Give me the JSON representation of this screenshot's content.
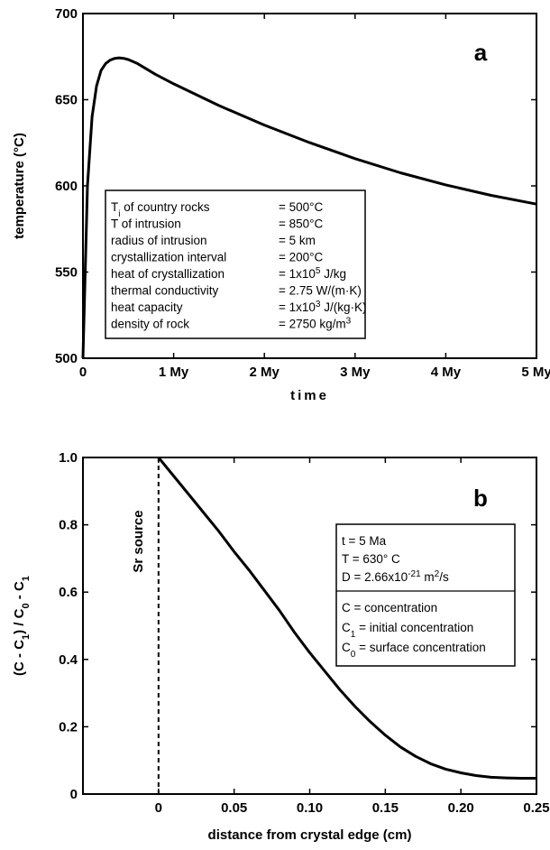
{
  "chart_data": [
    {
      "type": "line",
      "panel_label": "a",
      "xlabel": "time",
      "ylabel": "temperature (°C)",
      "xlim": [
        0,
        5
      ],
      "ylim": [
        500,
        700
      ],
      "x_ticks": [
        0,
        1,
        2,
        3,
        4,
        5
      ],
      "x_tick_labels": [
        "0",
        "1 My",
        "2 My",
        "3 My",
        "4 My",
        "5 My"
      ],
      "y_ticks": [
        500,
        550,
        600,
        650,
        700
      ],
      "y_tick_labels": [
        "500",
        "550",
        "600",
        "650",
        "700"
      ],
      "grid": false,
      "series": [
        {
          "x": [
            0,
            0.05,
            0.1,
            0.15,
            0.2,
            0.25,
            0.3,
            0.35,
            0.4,
            0.45,
            0.5,
            0.6,
            0.8,
            1.0,
            1.5,
            2.0,
            2.5,
            3.0,
            3.5,
            4.0,
            4.5,
            5.0
          ],
          "y": [
            500,
            600,
            640,
            658,
            667,
            671,
            673,
            674,
            674.3,
            674,
            673.3,
            671,
            664.7,
            659.2,
            646.6,
            635.3,
            625.1,
            615.8,
            607.6,
            600.6,
            594.5,
            589.4
          ]
        }
      ],
      "info_box": {
        "rows": [
          {
            "label": "T",
            "sub": "i",
            "label_rest": " of country rocks",
            "value": "= 500°C"
          },
          {
            "label": "T of intrusion",
            "value": "= 850°C"
          },
          {
            "label": "radius of intrusion",
            "value": "= 5 km"
          },
          {
            "label": "crystallization interval",
            "value": "= 200°C"
          },
          {
            "label": "heat of crystallization",
            "value": "= 1x10",
            "sup": "5",
            "value_rest": " J/kg"
          },
          {
            "label": "thermal conductivity",
            "value": "= 2.75 W/(m·K)"
          },
          {
            "label": "heat capacity",
            "value": "= 1x10",
            "sup": "3",
            "value_rest": " J/(kg·K)"
          },
          {
            "label": "density of rock",
            "value": "= 2750 kg/m",
            "sup": "3"
          }
        ]
      }
    },
    {
      "type": "line",
      "panel_label": "b",
      "xlabel": "distance from crystal edge (cm)",
      "ylabel": "(C - C1) / C0 - C1",
      "xlim": [
        -0.05,
        0.25
      ],
      "ylim": [
        0,
        1.0
      ],
      "x_ticks": [
        0,
        0.05,
        0.1,
        0.15,
        0.2,
        0.25
      ],
      "x_tick_labels": [
        "0",
        "0.05",
        "0.10",
        "0.15",
        "0.20",
        "0.25"
      ],
      "y_ticks": [
        0,
        0.2,
        0.4,
        0.6,
        0.8,
        1.0
      ],
      "y_tick_labels": [
        "0",
        "0.2",
        "0.4",
        "0.6",
        "0.8",
        "1.0"
      ],
      "grid": false,
      "series": [
        {
          "x": [
            0,
            0.01,
            0.02,
            0.03,
            0.04,
            0.05,
            0.06,
            0.07,
            0.08,
            0.09,
            0.1,
            0.11,
            0.12,
            0.13,
            0.14,
            0.15,
            0.16,
            0.17,
            0.18,
            0.19,
            0.2,
            0.21,
            0.22,
            0.23,
            0.24,
            0.25
          ],
          "y": [
            1.0,
            0.945,
            0.89,
            0.835,
            0.78,
            0.72,
            0.665,
            0.605,
            0.545,
            0.48,
            0.42,
            0.365,
            0.31,
            0.26,
            0.215,
            0.175,
            0.14,
            0.112,
            0.09,
            0.074,
            0.063,
            0.055,
            0.05,
            0.048,
            0.047,
            0.047
          ]
        }
      ],
      "source_line": {
        "x": 0,
        "label": "Sr source"
      },
      "info_box": {
        "params": [
          {
            "text": "t  = 5 Ma"
          },
          {
            "text": "T  = 630° C"
          },
          {
            "text": "D = 2.66x10",
            "sup": "-21",
            "rest": " m",
            "sup2": "2",
            "rest2": "/s"
          }
        ],
        "defs": [
          {
            "label": "C",
            "sub": "",
            "text": "  = concentration"
          },
          {
            "label": "C",
            "sub": "1",
            "text": " = initial concentration"
          },
          {
            "label": "C",
            "sub": "0",
            "text": " = surface concentration"
          }
        ]
      }
    }
  ]
}
